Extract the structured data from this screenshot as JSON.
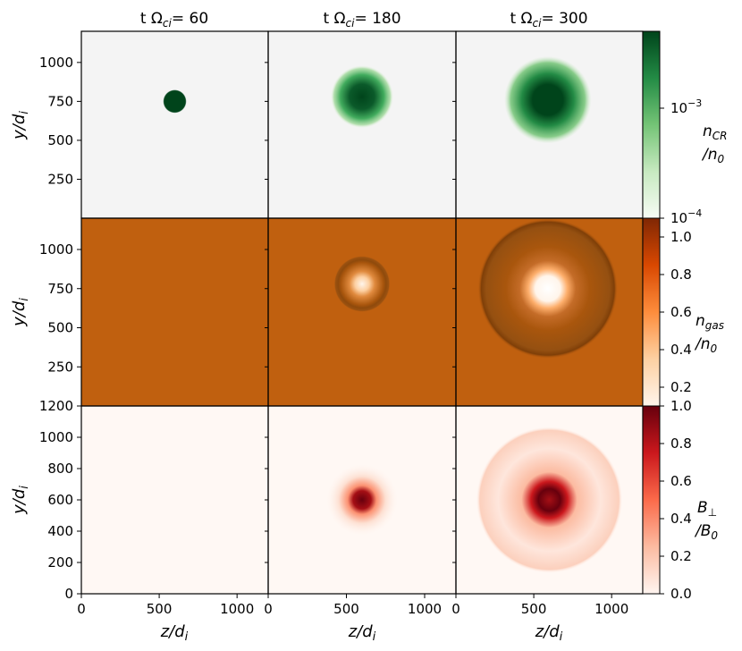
{
  "chart_data": [
    {
      "type": "heatmap",
      "title": "t Ω_ci= 60 / 180 / 300",
      "columns": [
        {
          "title_prefix": "t Ω",
          "title_sub": "ci",
          "title_suffix": "= 60",
          "time": 60
        },
        {
          "title_prefix": "t Ω",
          "title_sub": "ci",
          "title_suffix": "= 180",
          "time": 180
        },
        {
          "title_prefix": "t Ω",
          "title_sub": "ci",
          "title_suffix": "= 300",
          "time": 300
        }
      ],
      "rows": [
        {
          "quantity": "n_CR",
          "colormap": "Greens",
          "colorbar": {
            "label_line1": "n",
            "label_line1_sub": "CR",
            "label_line2": "/n",
            "label_line2_sub": "0",
            "scale": "log",
            "range": [
              0.0001,
              0.005
            ],
            "ticks": [
              {
                "value": 0.001,
                "base": "10",
                "exp": "−3"
              },
              {
                "value": 0.0001,
                "base": "10",
                "exp": "−4"
              }
            ]
          },
          "ylabel": "y/d_i",
          "yticks": [
            250,
            500,
            750,
            1000
          ],
          "ylim": [
            0,
            1200
          ],
          "blobs": [
            {
              "center_z": 600,
              "center_y": 750,
              "radius": 75,
              "peak": "saturated"
            },
            {
              "center_z": 600,
              "center_y": 780,
              "radius": 200,
              "peak": "saturated core"
            },
            {
              "center_z": 590,
              "center_y": 760,
              "radius": 280,
              "peak": "saturated core"
            }
          ]
        },
        {
          "quantity": "n_gas",
          "colormap": "Oranges",
          "colorbar": {
            "label_line1": "n",
            "label_line1_sub": "gas",
            "label_line2": "/n",
            "label_line2_sub": "0",
            "scale": "linear",
            "range": [
              0.1,
              1.1
            ],
            "ticks": [
              1.0,
              0.8,
              0.6,
              0.4,
              0.2
            ]
          },
          "ylabel": "y/d_i",
          "yticks": [
            250,
            500,
            750,
            1000
          ],
          "ylim": [
            0,
            1200
          ],
          "background_value": 1.0,
          "blobs": [
            {
              "center_z": 600,
              "center_y": 750,
              "radius": 0,
              "cavity": false
            },
            {
              "center_z": 600,
              "center_y": 780,
              "radius": 180,
              "cavity": true
            },
            {
              "center_z": 590,
              "center_y": 750,
              "radius": 450,
              "cavity": true
            }
          ]
        },
        {
          "quantity": "B_perp",
          "colormap": "Reds",
          "colorbar": {
            "label_line1": "B",
            "label_line1_sub": "⊥",
            "label_line2": "/B",
            "label_line2_sub": "0",
            "scale": "linear",
            "range": [
              0.0,
              1.0
            ],
            "ticks": [
              1.0,
              0.8,
              0.6,
              0.4,
              0.2,
              0.0
            ]
          },
          "ylabel": "y/d_i",
          "yticks": [
            0,
            200,
            400,
            600,
            800,
            1000,
            1200
          ],
          "ylim": [
            0,
            1200
          ],
          "xlabel": "z/d_i",
          "xticks": [
            0,
            500,
            1000
          ],
          "xlim": [
            0,
            1200
          ],
          "blobs": [
            {
              "center_z": 600,
              "center_y": 600,
              "radius": 0
            },
            {
              "center_z": 600,
              "center_y": 600,
              "radius": 230
            },
            {
              "center_z": 600,
              "center_y": 600,
              "radius": 470
            }
          ]
        }
      ],
      "colors": {
        "cr_background": "#f4f4f4",
        "gas_background": "#c0600f",
        "b_background": "#fff8f4",
        "greens_dark": "#00441b",
        "reds_dark": "#67000d"
      }
    }
  ]
}
